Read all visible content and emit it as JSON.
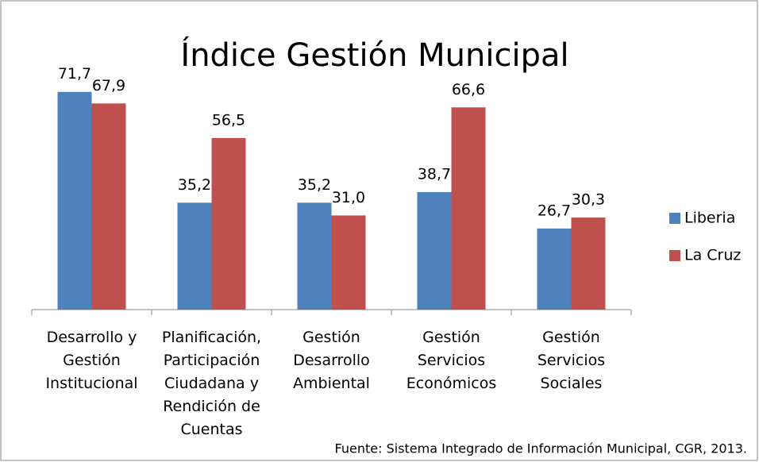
{
  "chart_data": {
    "type": "bar",
    "title": "Índice Gestión Municipal",
    "categories": [
      "Desarrollo y\nGestión\nInstitucional",
      "Planificación,\nParticipación\nCiudadana y\nRendición de\nCuentas",
      "Gestión\nDesarrollo\nAmbiental",
      "Gestión\nServicios\nEconómicos",
      "Gestión\nServicios\nSociales"
    ],
    "series": [
      {
        "name": "Liberia",
        "color": "#4f81bd",
        "values": [
          71.7,
          35.2,
          35.2,
          38.7,
          26.7
        ],
        "value_labels": [
          "71,7",
          "35,2",
          "35,2",
          "38,7",
          "26,7"
        ]
      },
      {
        "name": "La Cruz",
        "color": "#c0504d",
        "values": [
          67.9,
          56.5,
          31.0,
          66.6,
          30.3
        ],
        "value_labels": [
          "67,9",
          "56,5",
          "31,0",
          "66,6",
          "30,3"
        ]
      }
    ],
    "ylim": [
      0,
      80
    ],
    "legend": "right",
    "source": "Fuente: Sistema Integrado de Información Municipal, CGR, 2013."
  }
}
